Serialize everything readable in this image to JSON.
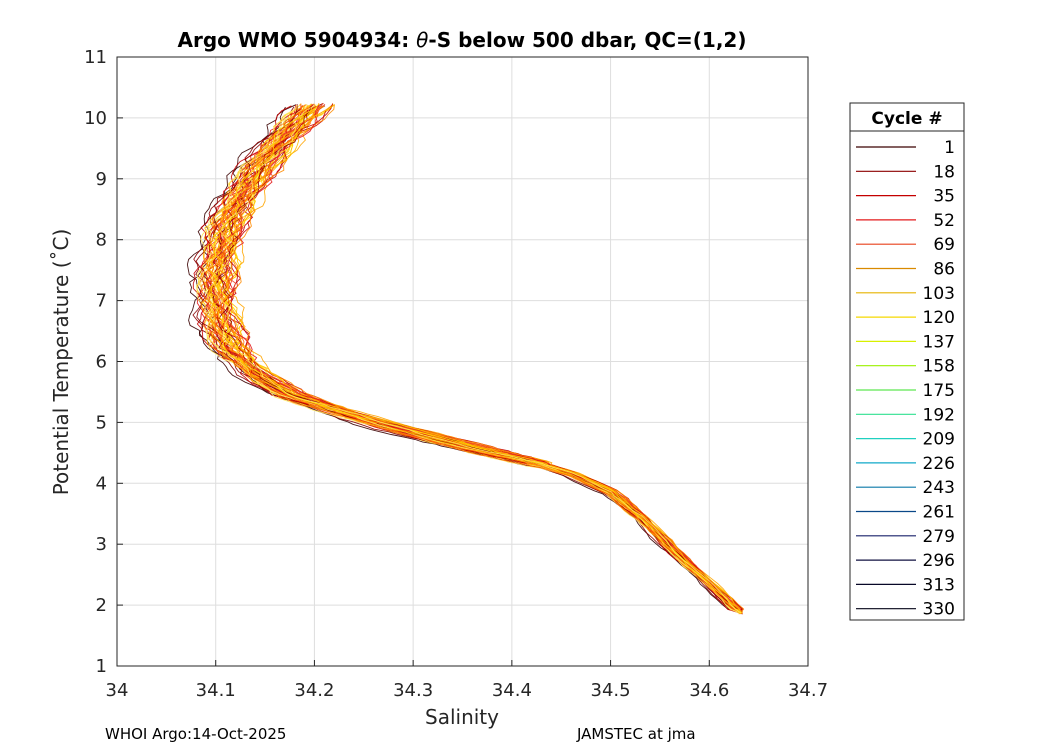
{
  "chart_data": {
    "type": "line",
    "title_prefix": "Argo WMO 5904934: ",
    "title_theta": "θ",
    "title_suffix": "-S below 500 dbar,  QC=(1,2)",
    "xlabel": "Salinity",
    "ylabel": "Potential Temperature (˚C)",
    "xlim": [
      34.0,
      34.7
    ],
    "ylim": [
      1,
      11
    ],
    "x_ticks": [
      "34",
      "34.1",
      "34.2",
      "34.3",
      "34.4",
      "34.5",
      "34.6",
      "34.7"
    ],
    "y_ticks": [
      "1",
      "2",
      "3",
      "4",
      "5",
      "6",
      "7",
      "8",
      "9",
      "10",
      "11"
    ],
    "grid": true,
    "legend_position": "right",
    "legend_title": "Cycle #",
    "legend": [
      {
        "label": "1",
        "color": "#3a0000"
      },
      {
        "label": "18",
        "color": "#8b0000"
      },
      {
        "label": "35",
        "color": "#c40000"
      },
      {
        "label": "52",
        "color": "#e31a1c"
      },
      {
        "label": "69",
        "color": "#e8401c"
      },
      {
        "label": "86",
        "color": "#d98a00"
      },
      {
        "label": "103",
        "color": "#e6b400"
      },
      {
        "label": "120",
        "color": "#f5d800"
      },
      {
        "label": "137",
        "color": "#d8f000"
      },
      {
        "label": "158",
        "color": "#9cf000"
      },
      {
        "label": "175",
        "color": "#5ee850"
      },
      {
        "label": "192",
        "color": "#30e090"
      },
      {
        "label": "209",
        "color": "#20d0c0"
      },
      {
        "label": "226",
        "color": "#10a8c8"
      },
      {
        "label": "243",
        "color": "#0a78a8"
      },
      {
        "label": "261",
        "color": "#0a4888"
      },
      {
        "label": "279",
        "color": "#18206a"
      },
      {
        "label": "296",
        "color": "#101040"
      },
      {
        "label": "313",
        "color": "#080828"
      },
      {
        "label": "330",
        "color": "#050518"
      }
    ],
    "mean_profile": {
      "salinity": [
        34.198,
        34.17,
        34.145,
        34.125,
        34.11,
        34.103,
        34.1,
        34.103,
        34.115,
        34.14,
        34.175,
        34.22,
        34.27,
        34.33,
        34.38,
        34.42,
        34.46,
        34.5,
        34.53,
        34.56,
        34.6,
        34.632
      ],
      "theta": [
        10.2,
        9.7,
        9.2,
        8.7,
        8.2,
        7.7,
        7.2,
        6.7,
        6.2,
        5.8,
        5.45,
        5.2,
        4.95,
        4.7,
        4.5,
        4.35,
        4.15,
        3.85,
        3.45,
        2.95,
        2.35,
        1.85
      ]
    },
    "series_colors": [
      "#8b0000",
      "#c40000",
      "#e31a1c",
      "#ee4422",
      "#ff6600",
      "#ff8c00",
      "#ffa500",
      "#ffc000",
      "#ffd700",
      "#ffe45a"
    ]
  },
  "footer": {
    "left": "WHOI Argo:14-Oct-2025",
    "right": "JAMSTEC at jma"
  }
}
